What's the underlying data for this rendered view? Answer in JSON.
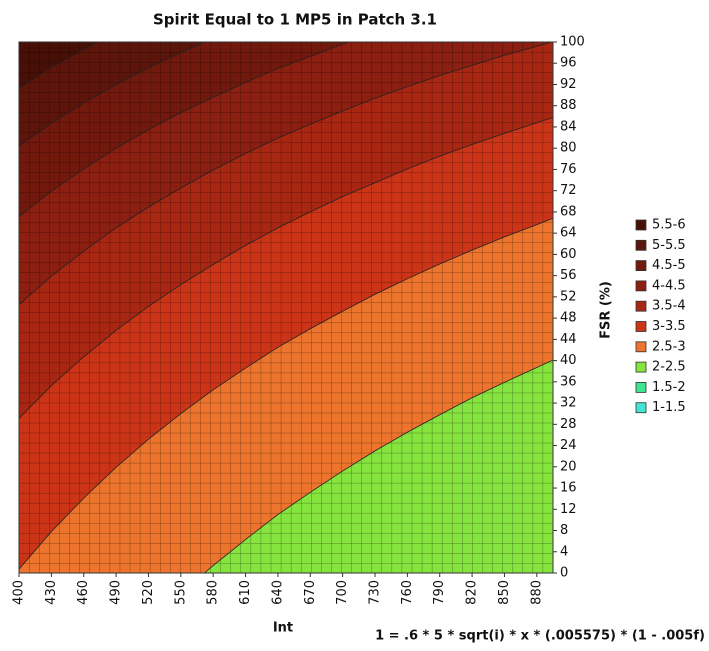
{
  "chart_data": {
    "type": "contour",
    "title": "Spirit Equal to 1 MP5 in Patch 3.1",
    "x_label": "Int",
    "y_label": "FSR (%)",
    "footnote": "1 = .6 * 5 * sqrt(i) * x * (.005575) * (1 - .005f)",
    "xlim": [
      400,
      895
    ],
    "ylim": [
      0,
      100
    ],
    "xticks": [
      400,
      430,
      460,
      490,
      520,
      550,
      580,
      610,
      640,
      670,
      700,
      730,
      760,
      790,
      820,
      850,
      880
    ],
    "yticks": [
      0,
      4,
      8,
      12,
      16,
      20,
      24,
      28,
      32,
      36,
      40,
      44,
      48,
      52,
      56,
      60,
      64,
      68,
      72,
      76,
      80,
      84,
      88,
      92,
      96,
      100
    ],
    "grid": true,
    "legend": "right",
    "series": [
      {
        "name": "5.5-6",
        "color": "#461007",
        "x": [
          400,
          430,
          460,
          473
        ],
        "y": [
          91.3,
          95.2,
          98.6,
          100
        ]
      },
      {
        "name": "5-5.5",
        "color": "#5c150b",
        "x": [
          400,
          430,
          460,
          490,
          520,
          550,
          572
        ],
        "y": [
          80.4,
          84.7,
          88.5,
          92.0,
          95.1,
          98.0,
          100
        ]
      },
      {
        "name": "4.5-5",
        "color": "#72190e",
        "x": [
          400,
          430,
          460,
          490,
          520,
          550,
          580,
          610,
          640,
          670,
          700,
          706
        ],
        "y": [
          67.1,
          71.9,
          76.1,
          80.0,
          83.5,
          86.7,
          89.6,
          92.4,
          95.0,
          97.3,
          99.6,
          100
        ]
      },
      {
        "name": "4-4.5",
        "color": "#8b1f11",
        "x": [
          400,
          430,
          460,
          490,
          520,
          550,
          580,
          610,
          640,
          670,
          700,
          730,
          760,
          790,
          820,
          850,
          880,
          894
        ],
        "y": [
          50.5,
          55.9,
          60.6,
          65.0,
          68.9,
          72.5,
          75.9,
          79.0,
          81.9,
          84.5,
          87.0,
          89.4,
          91.6,
          93.7,
          95.6,
          97.5,
          99.2,
          100
        ]
      },
      {
        "name": "3.5-4",
        "color": "#a82713",
        "x": [
          400,
          430,
          460,
          490,
          520,
          550,
          580,
          610,
          640,
          670,
          700,
          730,
          760,
          790,
          820,
          850,
          880,
          895
        ],
        "y": [
          29.1,
          35.3,
          40.7,
          45.7,
          50.2,
          54.3,
          58.1,
          61.7,
          65.0,
          68.0,
          70.9,
          73.5,
          76.1,
          78.5,
          80.7,
          82.8,
          84.8,
          85.8
        ]
      },
      {
        "name": "3-3.5",
        "color": "#cc3418",
        "x": [
          400,
          430,
          460,
          490,
          520,
          550,
          580,
          610,
          640,
          670,
          700,
          730,
          760,
          790,
          820,
          850,
          880,
          895
        ],
        "y": [
          0.7,
          7.8,
          14.1,
          19.9,
          25.2,
          30.0,
          34.5,
          38.6,
          42.5,
          46.0,
          49.3,
          52.5,
          55.4,
          58.2,
          60.8,
          63.3,
          65.6,
          66.8
        ]
      },
      {
        "name": "2.5-3",
        "color": "#ec742c",
        "x": [
          572,
          580,
          610,
          640,
          670,
          700,
          730,
          760,
          790,
          820,
          850,
          880,
          895
        ],
        "y": [
          0,
          1.4,
          6.3,
          11.0,
          15.2,
          19.2,
          23.0,
          26.5,
          29.8,
          33.0,
          35.9,
          38.7,
          40.1
        ]
      },
      {
        "name": "2-2.5",
        "color": "#86e43e"
      },
      {
        "name": "1.5-2",
        "color": "#3ee692"
      },
      {
        "name": "1-1.5",
        "color": "#42e4d2"
      }
    ]
  }
}
